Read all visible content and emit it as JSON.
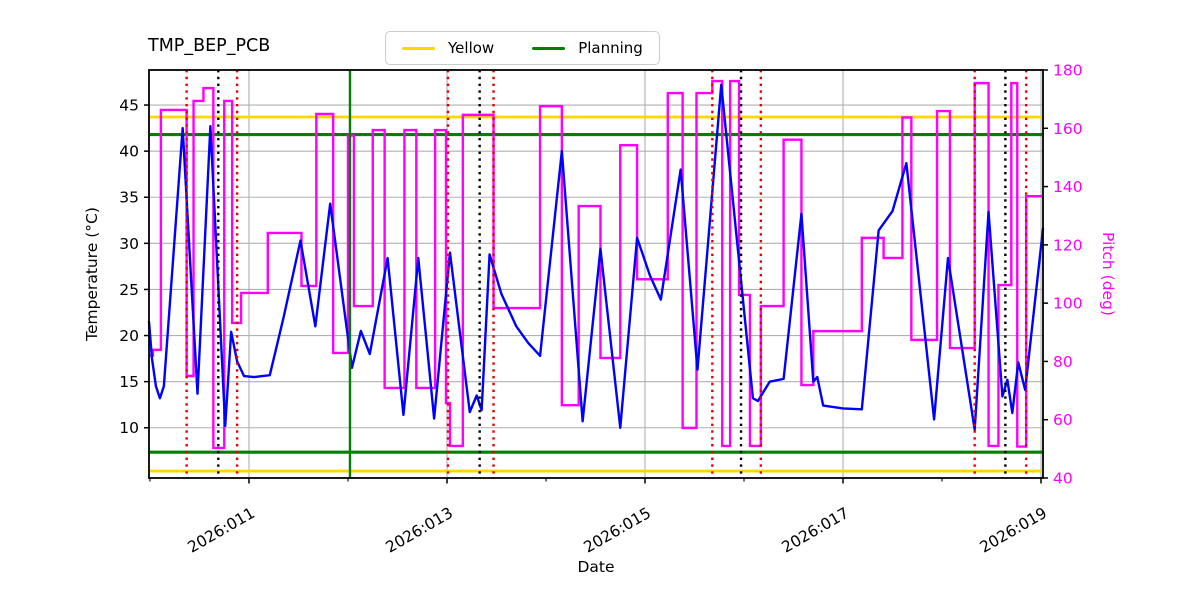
{
  "title": "TMP_BEP_PCB",
  "legend": {
    "items": [
      {
        "label": "Yellow",
        "color": "#FFD700"
      },
      {
        "label": "Planning",
        "color": "#008000"
      }
    ]
  },
  "axes": {
    "x": {
      "label": "Date",
      "lim": [
        9.99,
        19.02
      ],
      "ticks": [
        {
          "day": 11,
          "label": "2026:011"
        },
        {
          "day": 13,
          "label": "2026:013"
        },
        {
          "day": 15,
          "label": "2026:015"
        },
        {
          "day": 17,
          "label": "2026:017"
        },
        {
          "day": 19,
          "label": "2026:019"
        }
      ],
      "minor_tick_days": [
        10,
        12,
        14,
        16,
        18
      ]
    },
    "left": {
      "label": "Temperature (°C)",
      "lim": [
        4.55,
        48.8
      ],
      "ticks": [
        10,
        15,
        20,
        25,
        30,
        35,
        40,
        45
      ],
      "label_color": "#000000"
    },
    "right": {
      "label": "Pitch (deg)",
      "lim": [
        40,
        180
      ],
      "ticks": [
        40,
        60,
        80,
        100,
        120,
        140,
        160,
        180
      ],
      "label_color": "#FF00FF"
    }
  },
  "chart_data": {
    "type": "line",
    "grid": true,
    "grid_color": "#b0b0b0",
    "series": [
      {
        "name": "temperature",
        "axis": "left",
        "color": "#0000FF",
        "style": "line",
        "points": [
          [
            9.99,
            21.5
          ],
          [
            10.02,
            17.5
          ],
          [
            10.06,
            14.5
          ],
          [
            10.1,
            13.2
          ],
          [
            10.14,
            14.5
          ],
          [
            10.33,
            42.5
          ],
          [
            10.48,
            13.7
          ],
          [
            10.61,
            42.7
          ],
          [
            10.76,
            10.2
          ],
          [
            10.82,
            20.4
          ],
          [
            10.88,
            17.2
          ],
          [
            10.95,
            15.6
          ],
          [
            11.05,
            15.5
          ],
          [
            11.21,
            15.7
          ],
          [
            11.35,
            22.0
          ],
          [
            11.52,
            30.3
          ],
          [
            11.67,
            21.0
          ],
          [
            11.82,
            34.3
          ],
          [
            12.04,
            16.5
          ],
          [
            12.13,
            20.5
          ],
          [
            12.22,
            18.0
          ],
          [
            12.4,
            28.4
          ],
          [
            12.56,
            11.4
          ],
          [
            12.71,
            28.4
          ],
          [
            12.87,
            11.0
          ],
          [
            13.03,
            29.0
          ],
          [
            13.23,
            11.7
          ],
          [
            13.3,
            13.5
          ],
          [
            13.35,
            11.9
          ],
          [
            13.43,
            28.8
          ],
          [
            13.55,
            24.5
          ],
          [
            13.7,
            21.0
          ],
          [
            13.82,
            19.2
          ],
          [
            13.94,
            17.8
          ],
          [
            14.16,
            40.0
          ],
          [
            14.37,
            10.7
          ],
          [
            14.55,
            29.4
          ],
          [
            14.75,
            10.0
          ],
          [
            14.92,
            30.6
          ],
          [
            15.05,
            26.5
          ],
          [
            15.16,
            23.9
          ],
          [
            15.36,
            38.0
          ],
          [
            15.53,
            16.3
          ],
          [
            15.77,
            47.2
          ],
          [
            16.09,
            13.2
          ],
          [
            16.14,
            12.9
          ],
          [
            16.26,
            15.0
          ],
          [
            16.4,
            15.3
          ],
          [
            16.58,
            33.2
          ],
          [
            16.7,
            15.0
          ],
          [
            16.74,
            15.5
          ],
          [
            16.8,
            12.4
          ],
          [
            17.0,
            12.1
          ],
          [
            17.19,
            12.0
          ],
          [
            17.36,
            31.4
          ],
          [
            17.5,
            33.5
          ],
          [
            17.64,
            38.7
          ],
          [
            17.92,
            10.9
          ],
          [
            18.06,
            28.4
          ],
          [
            18.33,
            9.8
          ],
          [
            18.47,
            33.4
          ],
          [
            18.61,
            13.4
          ],
          [
            18.66,
            15.2
          ],
          [
            18.71,
            11.6
          ],
          [
            18.77,
            17.1
          ],
          [
            18.84,
            14.1
          ],
          [
            19.02,
            31.6
          ]
        ]
      },
      {
        "name": "pitch",
        "axis": "right",
        "color": "#FF00FF",
        "style": "step",
        "points": [
          [
            9.99,
            82.0
          ],
          [
            10.03,
            84.0
          ],
          [
            10.11,
            166.3
          ],
          [
            10.37,
            75.0
          ],
          [
            10.44,
            169.4
          ],
          [
            10.54,
            173.8
          ],
          [
            10.64,
            50.3
          ],
          [
            10.75,
            169.4
          ],
          [
            10.83,
            93.2
          ],
          [
            10.92,
            103.5
          ],
          [
            11.19,
            124.1
          ],
          [
            11.53,
            105.9
          ],
          [
            11.68,
            164.9
          ],
          [
            11.85,
            82.9
          ],
          [
            12.0,
            157.5
          ],
          [
            12.06,
            99.0
          ],
          [
            12.25,
            159.4
          ],
          [
            12.37,
            70.9
          ],
          [
            12.57,
            159.4
          ],
          [
            12.69,
            70.9
          ],
          [
            12.88,
            159.4
          ],
          [
            12.99,
            65.7
          ],
          [
            13.03,
            51.0
          ],
          [
            13.16,
            164.6
          ],
          [
            13.47,
            98.3
          ],
          [
            13.94,
            167.6
          ],
          [
            14.16,
            65.0
          ],
          [
            14.33,
            133.3
          ],
          [
            14.55,
            81.2
          ],
          [
            14.75,
            154.2
          ],
          [
            14.92,
            108.2
          ],
          [
            15.23,
            172.1
          ],
          [
            15.38,
            57.2
          ],
          [
            15.52,
            172.1
          ],
          [
            15.68,
            176.2
          ],
          [
            15.78,
            51.0
          ],
          [
            15.86,
            176.2
          ],
          [
            15.95,
            102.8
          ],
          [
            16.06,
            51.0
          ],
          [
            16.17,
            99.0
          ],
          [
            16.4,
            156.1
          ],
          [
            16.58,
            71.9
          ],
          [
            16.7,
            90.4
          ],
          [
            17.19,
            122.4
          ],
          [
            17.41,
            115.5
          ],
          [
            17.6,
            163.7
          ],
          [
            17.69,
            87.4
          ],
          [
            17.95,
            165.9
          ],
          [
            18.08,
            84.6
          ],
          [
            18.33,
            175.5
          ],
          [
            18.47,
            51.0
          ],
          [
            18.57,
            106.2
          ],
          [
            18.7,
            175.5
          ],
          [
            18.76,
            50.8
          ],
          [
            18.85,
            136.7
          ]
        ]
      }
    ],
    "limit_lines": {
      "yellow": {
        "name": "Yellow",
        "color": "#FFD700",
        "temp_values": [
          43.7,
          5.3
        ]
      },
      "planning": {
        "name": "Planning",
        "color": "#008000",
        "temp_values": [
          41.8,
          7.35
        ]
      }
    },
    "vlines": {
      "green_solid": {
        "color": "#008000",
        "days": [
          12.02
        ]
      },
      "red_dotted": {
        "color": "#E60000",
        "days": [
          10.37,
          10.88,
          13.01,
          13.47,
          15.68,
          16.17,
          18.33,
          18.85
        ]
      },
      "black_dotted": {
        "color": "#000000",
        "days": [
          10.69,
          13.33,
          15.97,
          18.64
        ]
      }
    },
    "legend_position": "top-center",
    "xlabel": "Date",
    "ylabel_left": "Temperature (°C)",
    "ylabel_right": "Pitch (deg)"
  }
}
